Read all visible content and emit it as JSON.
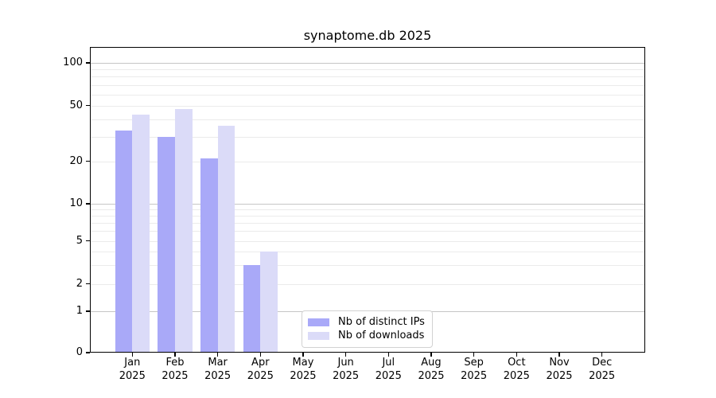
{
  "chart_data": {
    "type": "bar",
    "title": "synaptome.db 2025",
    "categories": [
      "Jan 2025",
      "Feb 2025",
      "Mar 2025",
      "Apr 2025",
      "May 2025",
      "Jun 2025",
      "Jul 2025",
      "Aug 2025",
      "Sep 2025",
      "Oct 2025",
      "Nov 2025",
      "Dec 2025"
    ],
    "series": [
      {
        "name": "Nb of distinct IPs",
        "color": "#a9a9f8",
        "values": [
          33,
          30,
          21,
          3,
          0,
          0,
          0,
          0,
          0,
          0,
          0,
          0
        ]
      },
      {
        "name": "Nb of downloads",
        "color": "#dbdbf8",
        "values": [
          43,
          47,
          36,
          4,
          0,
          0,
          0,
          0,
          0,
          0,
          0,
          0
        ]
      }
    ],
    "y_ticks": [
      "100",
      "50",
      "20",
      "10",
      "5",
      "2",
      "1",
      "0"
    ],
    "y_tick_values": [
      100,
      50,
      20,
      10,
      5,
      2,
      1,
      0
    ],
    "yscale": "symlog",
    "ylim": [
      0,
      130
    ],
    "xlabel": "",
    "ylabel": "",
    "grid": true,
    "legend_position": "lower center",
    "colors": {
      "major_grid": "#c6c6c6",
      "minor_grid": "#ebebeb",
      "axis": "#000000",
      "background": "#ffffff"
    }
  }
}
